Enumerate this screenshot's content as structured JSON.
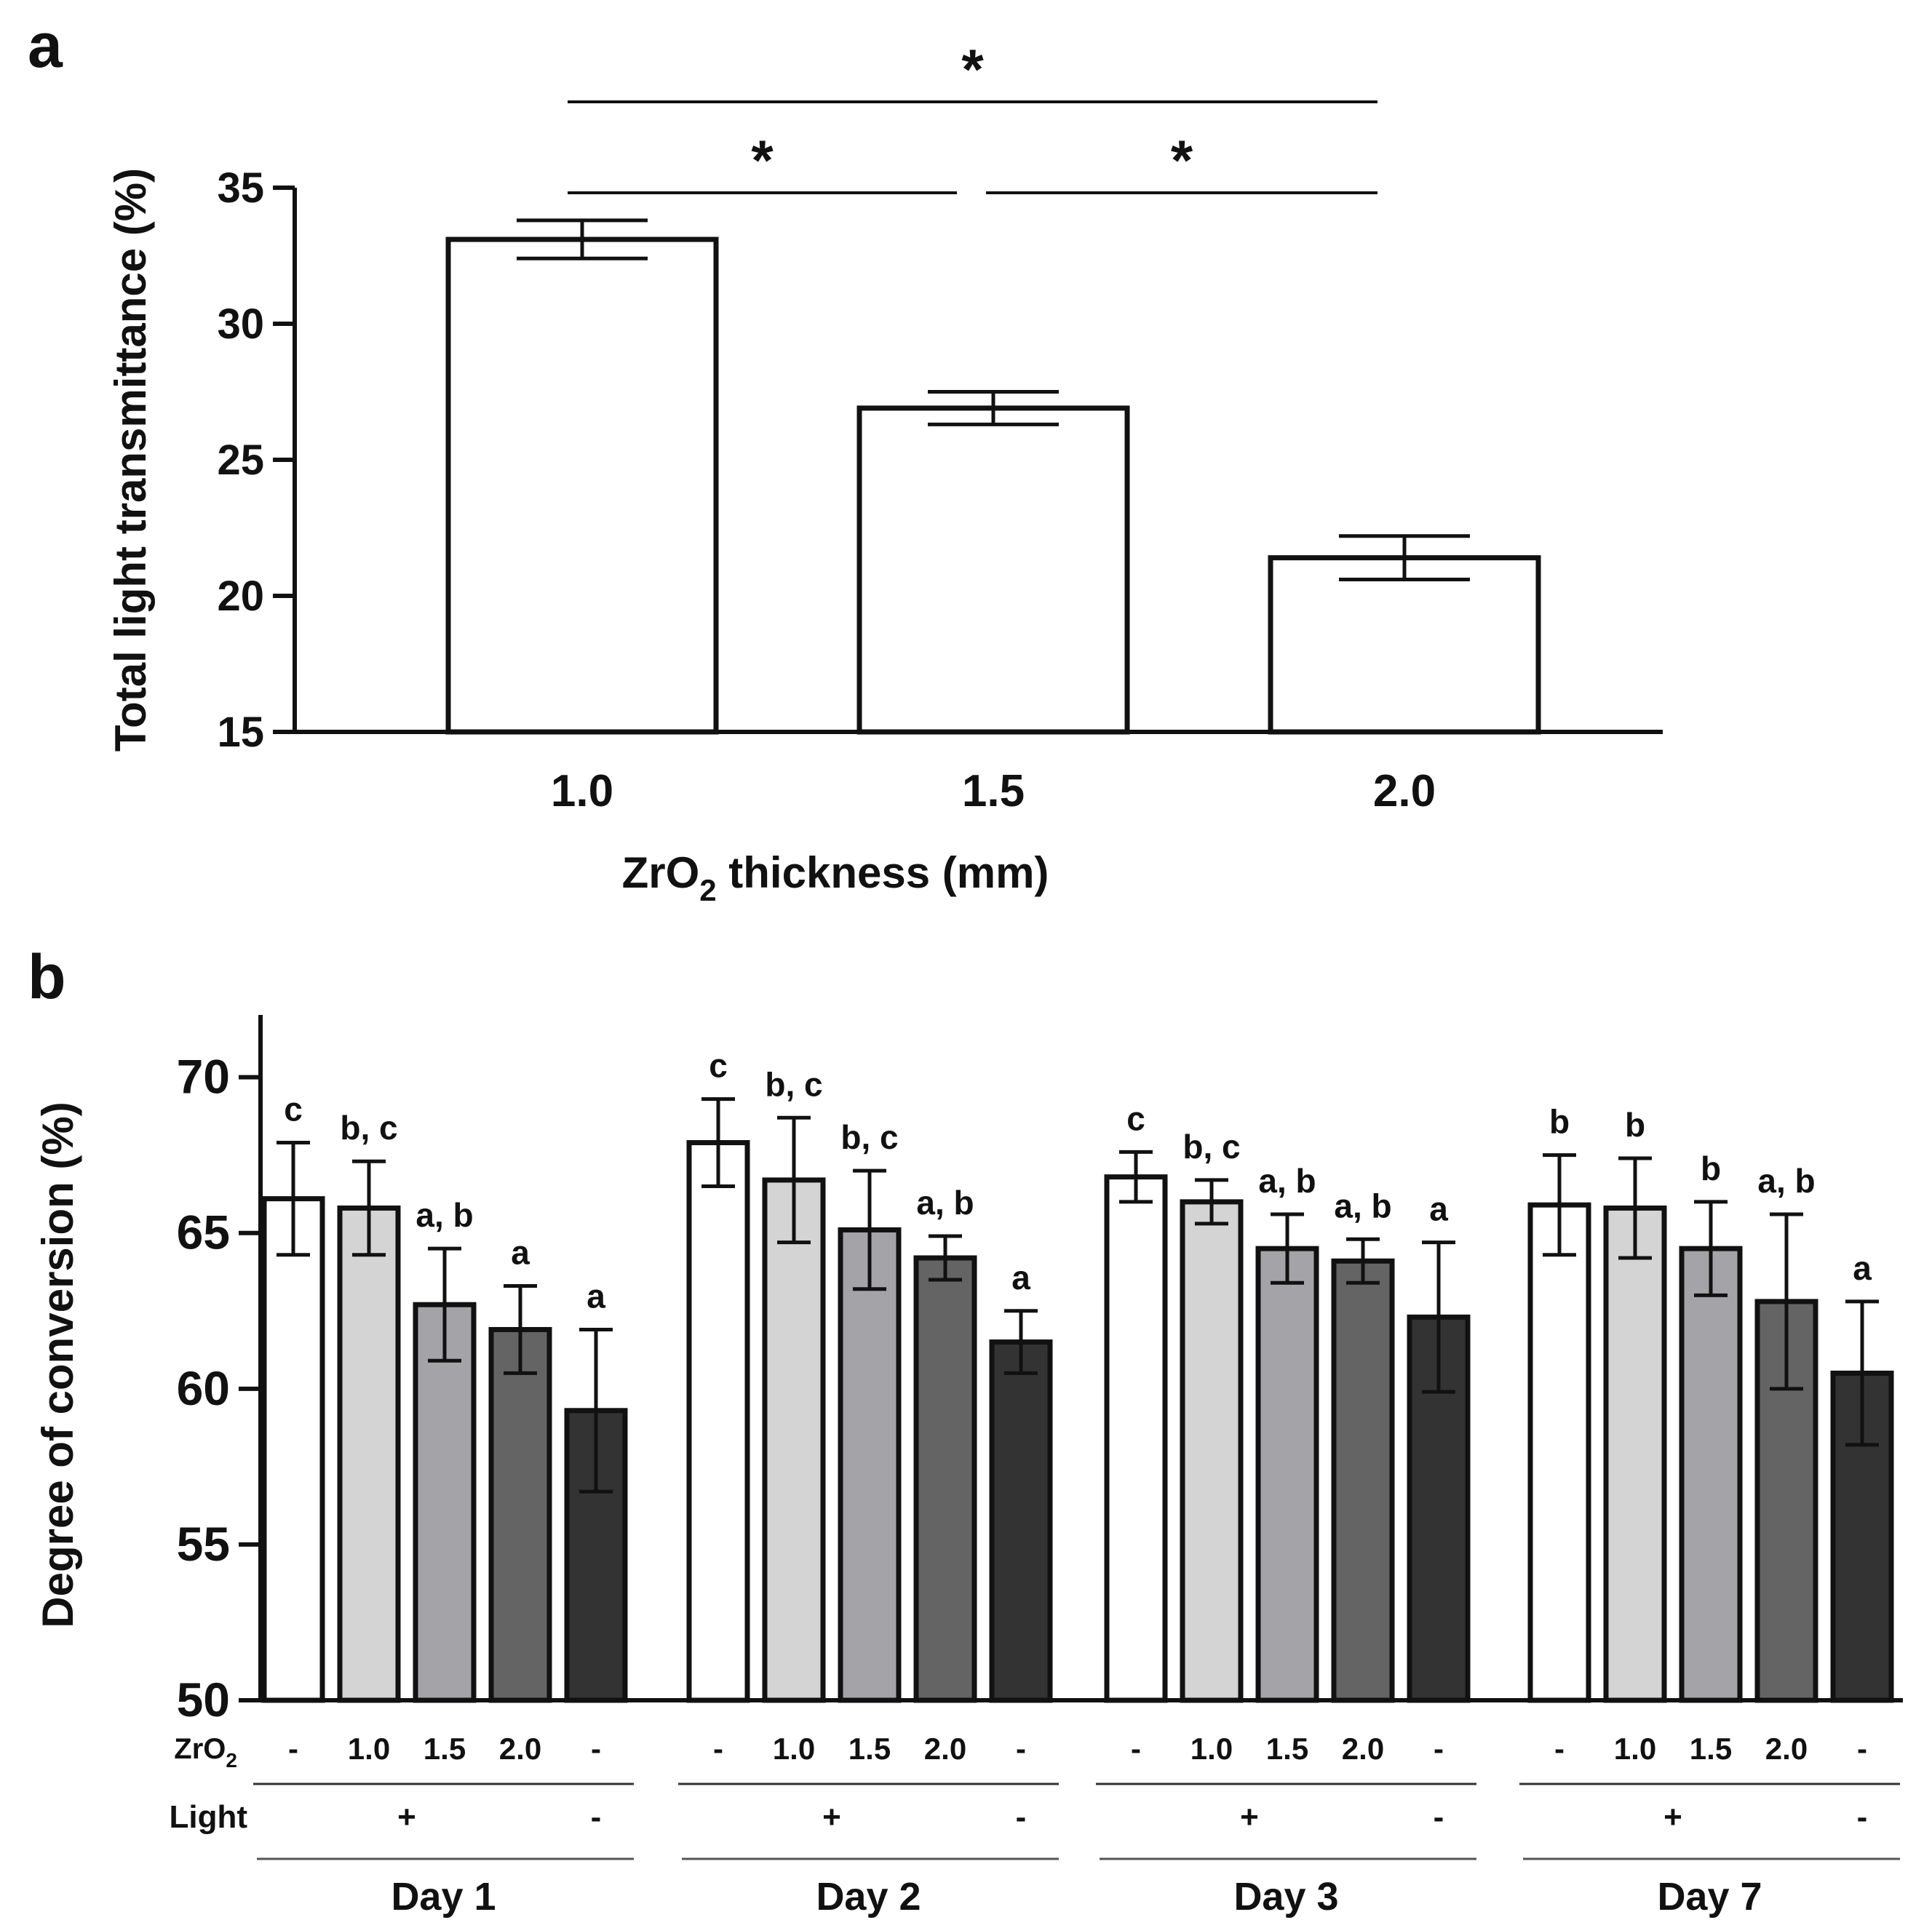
{
  "panel_a": {
    "label": "a",
    "chart_data": {
      "type": "bar",
      "categories": [
        "1.0",
        "1.5",
        "2.0"
      ],
      "values": [
        33.1,
        26.9,
        21.4
      ],
      "errors": [
        0.7,
        0.6,
        0.8
      ],
      "xlabel": "ZrO",
      "xlabel_sub": "2",
      "xlabel_rest": " thickness (mm)",
      "ylabel": "Total light transmittance (%)",
      "ylim": [
        15,
        35
      ],
      "yticks": [
        15,
        20,
        25,
        30,
        35
      ],
      "bar_fill": "#ffffff",
      "significance": [
        {
          "from": 0,
          "to": 1,
          "label": "*",
          "level": 1
        },
        {
          "from": 1,
          "to": 2,
          "label": "*",
          "level": 1
        },
        {
          "from": 0,
          "to": 2,
          "label": "*",
          "level": 2
        }
      ]
    }
  },
  "panel_b": {
    "label": "b",
    "chart_data": {
      "type": "bar",
      "ylabel": "Degree of conversion (%)",
      "ylim": [
        50,
        72
      ],
      "yticks": [
        50,
        55,
        60,
        65,
        70
      ],
      "row_labels": {
        "zro2": "ZrO",
        "zro2_sub": "2",
        "light": "Light"
      },
      "zro2_levels": [
        "-",
        "1.0",
        "1.5",
        "2.0",
        "-"
      ],
      "light_levels": [
        "+",
        "-"
      ],
      "series_colors": [
        "#ffffff",
        "#d4d4d4",
        "#a3a3a8",
        "#646464",
        "#333333"
      ],
      "groups": [
        {
          "name": "Day 1",
          "values": [
            66.1,
            65.8,
            62.7,
            61.9,
            59.3
          ],
          "errors": [
            1.8,
            1.5,
            1.8,
            1.4,
            2.6
          ],
          "letters": [
            "c",
            "b, c",
            "a, b",
            "a",
            "a"
          ]
        },
        {
          "name": "Day 2",
          "values": [
            67.9,
            66.7,
            65.1,
            64.2,
            61.5
          ],
          "errors": [
            1.4,
            2.0,
            1.9,
            0.7,
            1.0
          ],
          "letters": [
            "c",
            "b, c",
            "b, c",
            "a, b",
            "a"
          ]
        },
        {
          "name": "Day 3",
          "values": [
            66.8,
            66.0,
            64.5,
            64.1,
            62.3
          ],
          "errors": [
            0.8,
            0.7,
            1.1,
            0.7,
            2.4
          ],
          "letters": [
            "c",
            "b, c",
            "a, b",
            "a, b",
            "a"
          ]
        },
        {
          "name": "Day 7",
          "values": [
            65.9,
            65.8,
            64.5,
            62.8,
            60.5
          ],
          "errors": [
            1.6,
            1.6,
            1.5,
            2.8,
            2.3
          ],
          "letters": [
            "b",
            "b",
            "b",
            "a, b",
            "a"
          ]
        }
      ]
    }
  }
}
